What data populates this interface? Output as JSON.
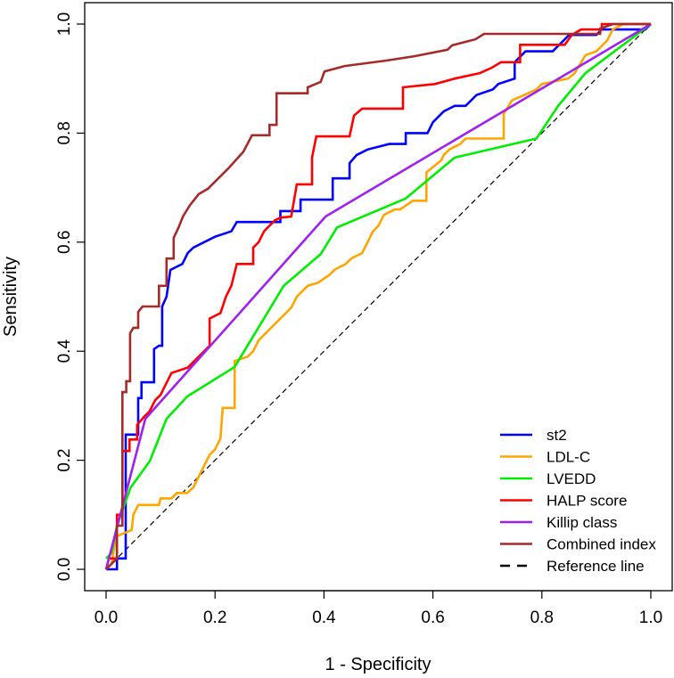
{
  "chart_data": {
    "type": "line",
    "title": "",
    "xlabel": "1 - Specificity",
    "ylabel": "Sensitivity",
    "xlim": [
      0,
      1
    ],
    "ylim": [
      0,
      1
    ],
    "xticks": [
      "0.0",
      "0.2",
      "0.4",
      "0.6",
      "0.8",
      "1.0"
    ],
    "yticks": [
      "0.0",
      "0.2",
      "0.4",
      "0.6",
      "0.8",
      "1.0"
    ],
    "grid": false,
    "legend_position": "bottom-right",
    "series": [
      {
        "name": "st2",
        "color": "#0000FF",
        "points": [
          [
            0,
            0
          ],
          [
            0.02,
            0
          ],
          [
            0.02,
            0.02
          ],
          [
            0.036,
            0.02
          ],
          [
            0.036,
            0.247
          ],
          [
            0.059,
            0.247
          ],
          [
            0.059,
            0.314
          ],
          [
            0.065,
            0.314
          ],
          [
            0.065,
            0.343
          ],
          [
            0.088,
            0.343
          ],
          [
            0.088,
            0.404
          ],
          [
            0.097,
            0.41
          ],
          [
            0.103,
            0.41
          ],
          [
            0.103,
            0.482
          ],
          [
            0.111,
            0.5
          ],
          [
            0.118,
            0.549
          ],
          [
            0.14,
            0.56
          ],
          [
            0.15,
            0.58
          ],
          [
            0.16,
            0.59
          ],
          [
            0.18,
            0.6
          ],
          [
            0.2,
            0.61
          ],
          [
            0.23,
            0.62
          ],
          [
            0.24,
            0.637
          ],
          [
            0.32,
            0.637
          ],
          [
            0.32,
            0.657
          ],
          [
            0.357,
            0.657
          ],
          [
            0.357,
            0.678
          ],
          [
            0.416,
            0.678
          ],
          [
            0.416,
            0.717
          ],
          [
            0.447,
            0.717
          ],
          [
            0.447,
            0.745
          ],
          [
            0.46,
            0.76
          ],
          [
            0.48,
            0.77
          ],
          [
            0.52,
            0.78
          ],
          [
            0.55,
            0.78
          ],
          [
            0.55,
            0.8
          ],
          [
            0.59,
            0.8
          ],
          [
            0.6,
            0.82
          ],
          [
            0.62,
            0.84
          ],
          [
            0.64,
            0.85
          ],
          [
            0.66,
            0.85
          ],
          [
            0.68,
            0.87
          ],
          [
            0.71,
            0.88
          ],
          [
            0.72,
            0.89
          ],
          [
            0.75,
            0.9
          ],
          [
            0.75,
            0.93
          ],
          [
            0.77,
            0.95
          ],
          [
            0.82,
            0.95
          ],
          [
            0.84,
            0.97
          ],
          [
            0.85,
            0.98
          ],
          [
            0.9,
            0.98
          ],
          [
            0.91,
            0.99
          ],
          [
            0.99,
            0.99
          ],
          [
            1,
            1
          ]
        ]
      },
      {
        "name": "LDL-C",
        "color": "#FFA500",
        "points": [
          [
            0,
            0
          ],
          [
            0.01,
            0.01
          ],
          [
            0.018,
            0.06
          ],
          [
            0.047,
            0.072
          ],
          [
            0.05,
            0.1
          ],
          [
            0.059,
            0.118
          ],
          [
            0.097,
            0.118
          ],
          [
            0.1,
            0.13
          ],
          [
            0.12,
            0.13
          ],
          [
            0.13,
            0.14
          ],
          [
            0.149,
            0.14
          ],
          [
            0.16,
            0.15
          ],
          [
            0.17,
            0.17
          ],
          [
            0.18,
            0.19
          ],
          [
            0.19,
            0.21
          ],
          [
            0.2,
            0.22
          ],
          [
            0.21,
            0.24
          ],
          [
            0.214,
            0.296
          ],
          [
            0.236,
            0.296
          ],
          [
            0.236,
            0.382
          ],
          [
            0.26,
            0.39
          ],
          [
            0.27,
            0.4
          ],
          [
            0.28,
            0.42
          ],
          [
            0.3,
            0.44
          ],
          [
            0.31,
            0.45
          ],
          [
            0.32,
            0.46
          ],
          [
            0.33,
            0.47
          ],
          [
            0.34,
            0.48
          ],
          [
            0.35,
            0.5
          ],
          [
            0.36,
            0.51
          ],
          [
            0.37,
            0.52
          ],
          [
            0.39,
            0.526
          ],
          [
            0.41,
            0.54
          ],
          [
            0.42,
            0.55
          ],
          [
            0.44,
            0.56
          ],
          [
            0.45,
            0.57
          ],
          [
            0.47,
            0.58
          ],
          [
            0.48,
            0.6
          ],
          [
            0.49,
            0.62
          ],
          [
            0.5,
            0.63
          ],
          [
            0.51,
            0.65
          ],
          [
            0.53,
            0.66
          ],
          [
            0.54,
            0.66
          ],
          [
            0.563,
            0.676
          ],
          [
            0.588,
            0.676
          ],
          [
            0.588,
            0.728
          ],
          [
            0.615,
            0.75
          ],
          [
            0.62,
            0.76
          ],
          [
            0.63,
            0.77
          ],
          [
            0.65,
            0.78
          ],
          [
            0.66,
            0.79
          ],
          [
            0.73,
            0.79
          ],
          [
            0.73,
            0.835
          ],
          [
            0.745,
            0.86
          ],
          [
            0.768,
            0.87
          ],
          [
            0.79,
            0.88
          ],
          [
            0.8,
            0.89
          ],
          [
            0.848,
            0.9
          ],
          [
            0.86,
            0.91
          ],
          [
            0.88,
            0.943
          ],
          [
            0.9,
            0.95
          ],
          [
            0.91,
            0.96
          ],
          [
            0.92,
            0.97
          ],
          [
            0.93,
            0.99
          ],
          [
            0.95,
            1
          ],
          [
            1,
            1
          ]
        ]
      },
      {
        "name": "LVEDD",
        "color": "#00EE00",
        "points": [
          [
            0,
            0.02
          ],
          [
            0.01,
            0.03
          ],
          [
            0.02,
            0.08
          ],
          [
            0.045,
            0.15
          ],
          [
            0.08,
            0.198
          ],
          [
            0.111,
            0.276
          ],
          [
            0.149,
            0.317
          ],
          [
            0.236,
            0.371
          ],
          [
            0.326,
            0.52
          ],
          [
            0.394,
            0.578
          ],
          [
            0.424,
            0.627
          ],
          [
            0.55,
            0.68
          ],
          [
            0.64,
            0.755
          ],
          [
            0.79,
            0.79
          ],
          [
            0.83,
            0.85
          ],
          [
            0.88,
            0.91
          ],
          [
            1,
            1
          ]
        ]
      },
      {
        "name": "HALP score",
        "color": "#FF0000",
        "points": [
          [
            0,
            0
          ],
          [
            0.005,
            0.02
          ],
          [
            0.02,
            0.02
          ],
          [
            0.02,
            0.1
          ],
          [
            0.03,
            0.1
          ],
          [
            0.03,
            0.217
          ],
          [
            0.043,
            0.217
          ],
          [
            0.043,
            0.238
          ],
          [
            0.057,
            0.238
          ],
          [
            0.057,
            0.265
          ],
          [
            0.07,
            0.28
          ],
          [
            0.08,
            0.29
          ],
          [
            0.085,
            0.3
          ],
          [
            0.09,
            0.31
          ],
          [
            0.1,
            0.32
          ],
          [
            0.11,
            0.34
          ],
          [
            0.12,
            0.36
          ],
          [
            0.15,
            0.37
          ],
          [
            0.16,
            0.38
          ],
          [
            0.19,
            0.41
          ],
          [
            0.19,
            0.46
          ],
          [
            0.21,
            0.47
          ],
          [
            0.22,
            0.5
          ],
          [
            0.23,
            0.52
          ],
          [
            0.24,
            0.56
          ],
          [
            0.27,
            0.56
          ],
          [
            0.27,
            0.59
          ],
          [
            0.28,
            0.6
          ],
          [
            0.29,
            0.62
          ],
          [
            0.3,
            0.63
          ],
          [
            0.31,
            0.64
          ],
          [
            0.32,
            0.645
          ],
          [
            0.34,
            0.647
          ],
          [
            0.35,
            0.706
          ],
          [
            0.378,
            0.706
          ],
          [
            0.378,
            0.755
          ],
          [
            0.386,
            0.794
          ],
          [
            0.447,
            0.794
          ],
          [
            0.455,
            0.832
          ],
          [
            0.47,
            0.845
          ],
          [
            0.545,
            0.845
          ],
          [
            0.545,
            0.884
          ],
          [
            0.604,
            0.89
          ],
          [
            0.64,
            0.9
          ],
          [
            0.686,
            0.91
          ],
          [
            0.708,
            0.92
          ],
          [
            0.725,
            0.93
          ],
          [
            0.76,
            0.93
          ],
          [
            0.76,
            0.962
          ],
          [
            0.842,
            0.962
          ],
          [
            0.855,
            0.98
          ],
          [
            0.872,
            0.99
          ],
          [
            0.91,
            0.99
          ],
          [
            0.91,
            1
          ],
          [
            1,
            1
          ]
        ]
      },
      {
        "name": "Killip class",
        "color": "#A020F0",
        "points": [
          [
            0,
            0
          ],
          [
            0.072,
            0.276
          ],
          [
            0.403,
            0.647
          ],
          [
            1,
            1
          ]
        ]
      },
      {
        "name": "Combined index",
        "color": "#A52A2A",
        "points": [
          [
            0,
            0
          ],
          [
            0.02,
            0.02
          ],
          [
            0.02,
            0.08
          ],
          [
            0.03,
            0.08
          ],
          [
            0.03,
            0.325
          ],
          [
            0.037,
            0.325
          ],
          [
            0.037,
            0.345
          ],
          [
            0.044,
            0.345
          ],
          [
            0.044,
            0.433
          ],
          [
            0.05,
            0.443
          ],
          [
            0.059,
            0.443
          ],
          [
            0.059,
            0.472
          ],
          [
            0.067,
            0.482
          ],
          [
            0.097,
            0.482
          ],
          [
            0.097,
            0.52
          ],
          [
            0.111,
            0.52
          ],
          [
            0.111,
            0.57
          ],
          [
            0.124,
            0.57
          ],
          [
            0.124,
            0.608
          ],
          [
            0.133,
            0.627
          ],
          [
            0.141,
            0.647
          ],
          [
            0.154,
            0.668
          ],
          [
            0.17,
            0.688
          ],
          [
            0.187,
            0.698
          ],
          [
            0.206,
            0.717
          ],
          [
            0.226,
            0.737
          ],
          [
            0.252,
            0.766
          ],
          [
            0.268,
            0.796
          ],
          [
            0.3,
            0.796
          ],
          [
            0.3,
            0.815
          ],
          [
            0.313,
            0.815
          ],
          [
            0.313,
            0.873
          ],
          [
            0.37,
            0.873
          ],
          [
            0.37,
            0.884
          ],
          [
            0.394,
            0.894
          ],
          [
            0.401,
            0.913
          ],
          [
            0.438,
            0.923
          ],
          [
            0.514,
            0.933
          ],
          [
            0.566,
            0.941
          ],
          [
            0.627,
            0.953
          ],
          [
            0.635,
            0.961
          ],
          [
            0.678,
            0.972
          ],
          [
            0.694,
            0.982
          ],
          [
            0.907,
            0.982
          ],
          [
            0.907,
            0.992
          ],
          [
            0.931,
            1
          ],
          [
            1,
            1
          ]
        ]
      },
      {
        "name": "Reference line",
        "color": "#000000",
        "dashed": true,
        "points": [
          [
            0,
            0
          ],
          [
            1,
            1
          ]
        ]
      }
    ]
  }
}
